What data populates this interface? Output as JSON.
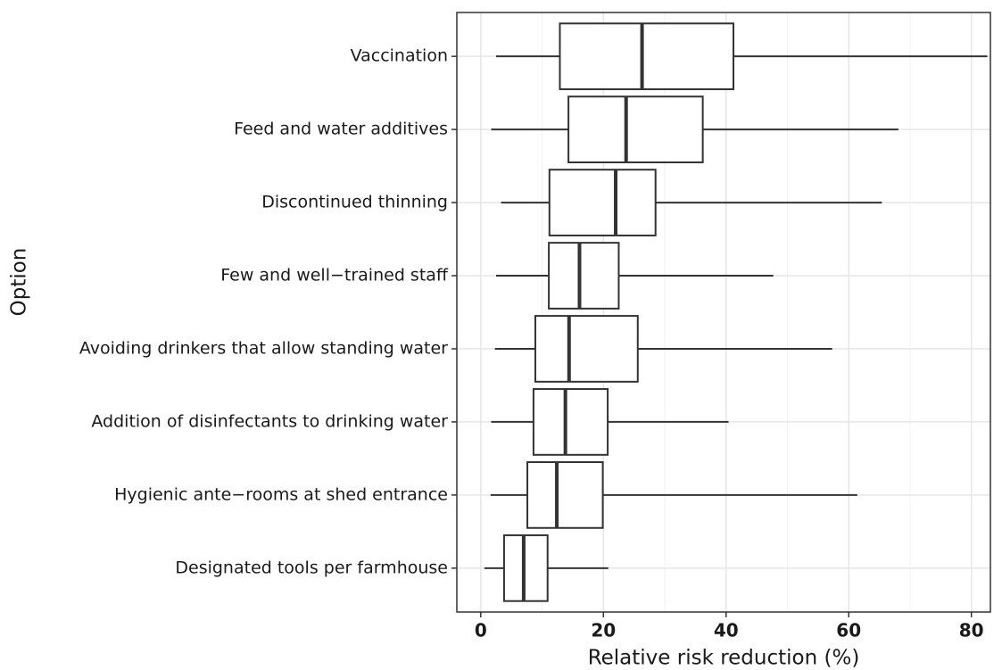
{
  "chart_data": {
    "type": "boxplot",
    "orientation": "horizontal",
    "x_label": "Relative risk reduction (%)",
    "y_label": "Option",
    "categories": [
      "Vaccination",
      "Feed and water additives",
      "Discontinued thinning",
      "Few and well−trained staff",
      "Avoiding drinkers that allow standing water",
      "Addition of disinfectants to drinking water",
      "Hygienic ante−rooms at shed entrance",
      "Designated tools per farmhouse"
    ],
    "boxes": [
      {
        "whislo": 2.5,
        "q1": 12.9,
        "med": 26.3,
        "q3": 41.2,
        "whishi": 82.6
      },
      {
        "whislo": 1.7,
        "q1": 14.3,
        "med": 23.7,
        "q3": 36.2,
        "whishi": 68.1
      },
      {
        "whislo": 3.3,
        "q1": 11.2,
        "med": 22.0,
        "q3": 28.5,
        "whishi": 65.4
      },
      {
        "whislo": 2.5,
        "q1": 11.1,
        "med": 16.1,
        "q3": 22.5,
        "whishi": 47.7
      },
      {
        "whislo": 2.3,
        "q1": 8.9,
        "med": 14.4,
        "q3": 25.6,
        "whishi": 57.3
      },
      {
        "whislo": 1.7,
        "q1": 8.6,
        "med": 13.8,
        "q3": 20.7,
        "whishi": 40.4
      },
      {
        "whislo": 1.6,
        "q1": 7.6,
        "med": 12.4,
        "q3": 19.9,
        "whishi": 61.4
      },
      {
        "whislo": 0.6,
        "q1": 3.8,
        "med": 7.0,
        "q3": 10.9,
        "whishi": 20.8
      }
    ],
    "color": "#333333",
    "xlim": [
      -3.9,
      83.1
    ],
    "xticks": [
      0,
      20,
      40,
      60,
      80
    ],
    "minor_xticks": [
      10,
      30,
      50,
      70
    ],
    "grid": true
  }
}
